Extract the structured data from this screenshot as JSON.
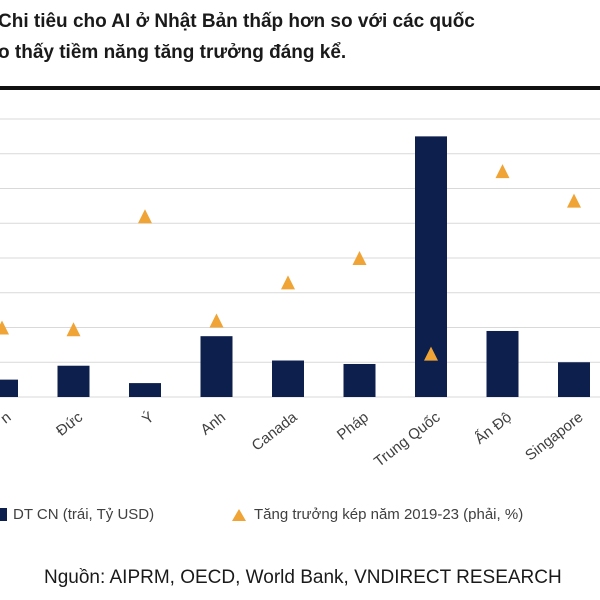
{
  "title_lines": [
    "Chi tiêu cho AI ở Nhật Bản thấp hơn so với các quốc",
    "o thấy tiềm năng tăng trưởng đáng kể."
  ],
  "colors": {
    "bar": "#0d1f4c",
    "marker": "#f0a436",
    "grid": "#d9d9d9",
    "text": "#404040"
  },
  "chart_data": {
    "type": "bar",
    "categories": [
      "n",
      "Đức",
      "Ý",
      "Anh",
      "Canada",
      "Pháp",
      "Trung Quốc",
      "Ấn Độ",
      "Singapore"
    ],
    "series": [
      {
        "name": "DT CN (trái, Tỷ USD)",
        "type": "bar",
        "axis": "left",
        "values": [
          0.5,
          0.9,
          0.4,
          1.75,
          1.05,
          0.95,
          7.5,
          1.9,
          1.0
        ]
      },
      {
        "name": "Tăng trưởng kép năm 2019-23 (phải, %)",
        "type": "marker",
        "marker": "triangle",
        "axis": "right",
        "values": [
          20,
          19.5,
          52,
          22,
          33,
          40,
          12.5,
          65,
          56.5
        ]
      }
    ],
    "ylim_left": [
      0,
      8
    ],
    "ylim_right": [
      0,
      80
    ],
    "grid": true,
    "legend_position": "bottom"
  },
  "source": "Nguồn: AIPRM, OECD, World Bank, VNDIRECT RESEARCH"
}
